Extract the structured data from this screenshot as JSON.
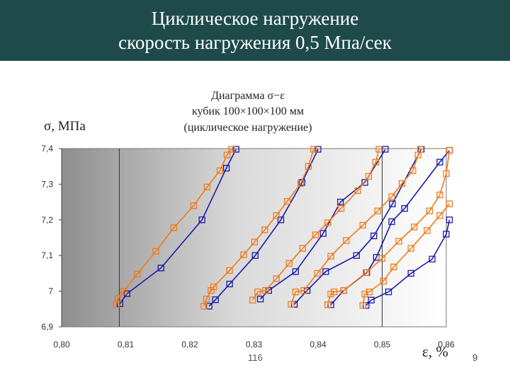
{
  "header": {
    "title_line1": "Циклическое нагружение",
    "title_line2": "скорость нагружения  0,5 Мпа/сек",
    "background": "#1e4a4a"
  },
  "chart_data": {
    "type": "line",
    "title_lines": [
      "Диаграмма σ−ε",
      "кубик 100×100×100 мм",
      "(циклическое нагружение)"
    ],
    "ylabel": "σ, МПа",
    "xlabel": "ε, %",
    "xlim": [
      0.8,
      0.86
    ],
    "ylim": [
      6.9,
      7.4
    ],
    "x_ticks": [
      "0,80",
      "0,81",
      "0,82",
      "0,83",
      "0,84",
      "0,85",
      "0,86"
    ],
    "x_tick_values": [
      0.8,
      0.81,
      0.82,
      0.83,
      0.84,
      0.85,
      0.86
    ],
    "y_ticks": [
      "6,9",
      "7",
      "7,1",
      "7,2",
      "7,3",
      "7,4"
    ],
    "y_tick_values": [
      6.9,
      7.0,
      7.1,
      7.2,
      7.3,
      7.4
    ],
    "reference_lines_x": [
      0.809,
      0.85
    ],
    "colors": {
      "loading": "#1a1aa8",
      "unloading": "#ef7a1c"
    },
    "grid": false,
    "series": [
      {
        "style": "loading",
        "points": [
          [
            0.8091,
            6.965
          ],
          [
            0.8102,
            6.993
          ],
          [
            0.8155,
            7.065
          ],
          [
            0.8219,
            7.2
          ],
          [
            0.8257,
            7.345
          ],
          [
            0.8272,
            7.398
          ]
        ]
      },
      {
        "style": "unloading",
        "points": [
          [
            0.8085,
            6.962
          ],
          [
            0.8088,
            6.98
          ],
          [
            0.8097,
            7.0
          ],
          [
            0.8118,
            7.048
          ],
          [
            0.8147,
            7.112
          ],
          [
            0.8175,
            7.178
          ],
          [
            0.8206,
            7.24
          ],
          [
            0.8227,
            7.292
          ],
          [
            0.8247,
            7.338
          ],
          [
            0.8258,
            7.382
          ],
          [
            0.8265,
            7.398
          ]
        ]
      },
      {
        "style": "loading",
        "points": [
          [
            0.823,
            6.958
          ],
          [
            0.824,
            6.976
          ],
          [
            0.8262,
            7.02
          ],
          [
            0.8302,
            7.1
          ],
          [
            0.8342,
            7.2
          ],
          [
            0.8375,
            7.305
          ],
          [
            0.84,
            7.398
          ]
        ]
      },
      {
        "style": "unloading",
        "points": [
          [
            0.8222,
            6.958
          ],
          [
            0.8226,
            6.978
          ],
          [
            0.8233,
            7.002
          ],
          [
            0.8237,
            7.012
          ],
          [
            0.8262,
            7.058
          ],
          [
            0.8284,
            7.102
          ],
          [
            0.8301,
            7.138
          ],
          [
            0.8317,
            7.172
          ],
          [
            0.8335,
            7.212
          ],
          [
            0.8352,
            7.252
          ],
          [
            0.8373,
            7.302
          ],
          [
            0.8385,
            7.35
          ],
          [
            0.8393,
            7.398
          ]
        ]
      },
      {
        "style": "loading",
        "points": [
          [
            0.831,
            6.978
          ],
          [
            0.8323,
            7.002
          ],
          [
            0.8365,
            7.055
          ],
          [
            0.8408,
            7.162
          ],
          [
            0.8435,
            7.25
          ],
          [
            0.8473,
            7.305
          ],
          [
            0.8505,
            7.398
          ]
        ]
      },
      {
        "style": "unloading",
        "points": [
          [
            0.8298,
            6.975
          ],
          [
            0.8306,
            6.998
          ],
          [
            0.8318,
            7.002
          ],
          [
            0.8335,
            7.035
          ],
          [
            0.8355,
            7.078
          ],
          [
            0.8376,
            7.12
          ],
          [
            0.8396,
            7.158
          ],
          [
            0.8415,
            7.192
          ],
          [
            0.8436,
            7.232
          ],
          [
            0.8462,
            7.282
          ],
          [
            0.8479,
            7.322
          ],
          [
            0.849,
            7.362
          ],
          [
            0.8495,
            7.398
          ]
        ]
      },
      {
        "style": "loading",
        "points": [
          [
            0.8363,
            6.963
          ],
          [
            0.8383,
            7.002
          ],
          [
            0.8412,
            7.055
          ],
          [
            0.846,
            7.1
          ],
          [
            0.8487,
            7.155
          ],
          [
            0.8516,
            7.245
          ],
          [
            0.8561,
            7.398
          ]
        ]
      },
      {
        "style": "unloading",
        "points": [
          [
            0.8358,
            6.963
          ],
          [
            0.8365,
            6.998
          ],
          [
            0.8378,
            7.002
          ],
          [
            0.8399,
            7.05
          ],
          [
            0.842,
            7.098
          ],
          [
            0.8444,
            7.142
          ],
          [
            0.847,
            7.185
          ],
          [
            0.8493,
            7.225
          ],
          [
            0.8515,
            7.265
          ],
          [
            0.8531,
            7.302
          ],
          [
            0.8548,
            7.338
          ],
          [
            0.8556,
            7.382
          ],
          [
            0.856,
            7.398
          ]
        ]
      },
      {
        "style": "loading",
        "points": [
          [
            0.842,
            6.962
          ],
          [
            0.844,
            7.002
          ],
          [
            0.8476,
            7.052
          ],
          [
            0.8491,
            7.095
          ],
          [
            0.8515,
            7.195
          ],
          [
            0.8535,
            7.232
          ],
          [
            0.859,
            7.362
          ],
          [
            0.8605,
            7.395
          ]
        ]
      },
      {
        "style": "unloading",
        "points": [
          [
            0.8415,
            6.962
          ],
          [
            0.842,
            6.992
          ],
          [
            0.8425,
            6.998
          ],
          [
            0.844,
            7.002
          ],
          [
            0.8475,
            7.052
          ],
          [
            0.85,
            7.092
          ],
          [
            0.8526,
            7.14
          ],
          [
            0.855,
            7.18
          ],
          [
            0.8574,
            7.225
          ],
          [
            0.859,
            7.27
          ],
          [
            0.86,
            7.33
          ],
          [
            0.8605,
            7.395
          ]
        ]
      },
      {
        "style": "loading",
        "points": [
          [
            0.8475,
            6.96
          ],
          [
            0.8483,
            6.975
          ],
          [
            0.851,
            6.998
          ],
          [
            0.8545,
            7.05
          ],
          [
            0.8578,
            7.09
          ],
          [
            0.86,
            7.16
          ],
          [
            0.8605,
            7.2
          ]
        ]
      },
      {
        "style": "unloading",
        "points": [
          [
            0.847,
            6.96
          ],
          [
            0.8473,
            6.992
          ],
          [
            0.848,
            6.998
          ],
          [
            0.8502,
            7.028
          ],
          [
            0.8518,
            7.068
          ],
          [
            0.8545,
            7.12
          ],
          [
            0.857,
            7.17
          ],
          [
            0.859,
            7.212
          ],
          [
            0.8605,
            7.245
          ]
        ]
      }
    ],
    "annotations": []
  },
  "footnote": "116",
  "slide_number": "9"
}
